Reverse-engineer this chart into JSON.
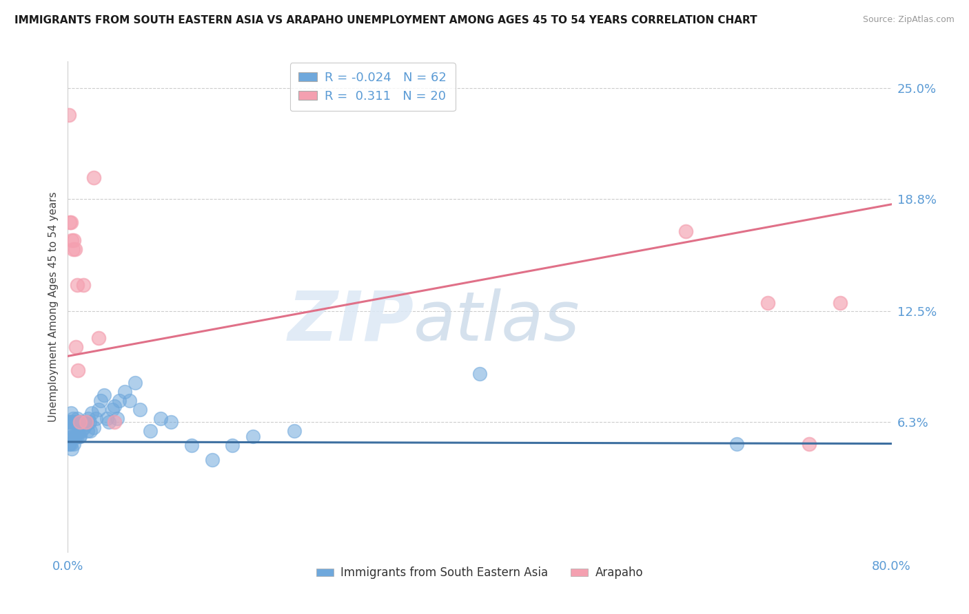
{
  "title": "IMMIGRANTS FROM SOUTH EASTERN ASIA VS ARAPAHO UNEMPLOYMENT AMONG AGES 45 TO 54 YEARS CORRELATION CHART",
  "source": "Source: ZipAtlas.com",
  "ylabel": "Unemployment Among Ages 45 to 54 years",
  "xlim": [
    0.0,
    0.8
  ],
  "ylim": [
    -0.01,
    0.265
  ],
  "ytick_positions": [
    0.063,
    0.125,
    0.188,
    0.25
  ],
  "ytick_labels": [
    "6.3%",
    "12.5%",
    "18.8%",
    "25.0%"
  ],
  "xtick_positions": [
    0.0,
    0.8
  ],
  "xtick_labels": [
    "0.0%",
    "80.0%"
  ],
  "blue_color": "#6fa8dc",
  "pink_color": "#f4a0b0",
  "blue_line_color": "#3d6fa0",
  "pink_line_color": "#e07088",
  "blue_R": -0.024,
  "blue_N": 62,
  "pink_R": 0.311,
  "pink_N": 20,
  "legend_label_blue": "Immigrants from South Eastern Asia",
  "legend_label_pink": "Arapaho",
  "watermark_zip": "ZIP",
  "watermark_atlas": "atlas",
  "blue_trend_x": [
    0.0,
    0.8
  ],
  "blue_trend_y": [
    0.052,
    0.051
  ],
  "pink_trend_x": [
    0.0,
    0.8
  ],
  "pink_trend_y": [
    0.1,
    0.185
  ],
  "blue_scatter_x": [
    0.001,
    0.001,
    0.002,
    0.002,
    0.003,
    0.003,
    0.003,
    0.004,
    0.004,
    0.004,
    0.005,
    0.005,
    0.006,
    0.006,
    0.006,
    0.007,
    0.007,
    0.008,
    0.008,
    0.009,
    0.009,
    0.01,
    0.011,
    0.011,
    0.012,
    0.012,
    0.013,
    0.014,
    0.015,
    0.016,
    0.017,
    0.018,
    0.019,
    0.02,
    0.021,
    0.022,
    0.023,
    0.025,
    0.027,
    0.03,
    0.032,
    0.035,
    0.038,
    0.04,
    0.043,
    0.045,
    0.048,
    0.05,
    0.055,
    0.06,
    0.065,
    0.07,
    0.08,
    0.09,
    0.1,
    0.12,
    0.14,
    0.16,
    0.18,
    0.22,
    0.4,
    0.65
  ],
  "blue_scatter_y": [
    0.063,
    0.051,
    0.063,
    0.051,
    0.068,
    0.058,
    0.051,
    0.063,
    0.055,
    0.048,
    0.065,
    0.055,
    0.063,
    0.058,
    0.051,
    0.063,
    0.055,
    0.063,
    0.055,
    0.065,
    0.055,
    0.063,
    0.063,
    0.055,
    0.063,
    0.055,
    0.058,
    0.063,
    0.063,
    0.06,
    0.063,
    0.062,
    0.058,
    0.065,
    0.063,
    0.058,
    0.068,
    0.06,
    0.065,
    0.07,
    0.075,
    0.078,
    0.065,
    0.063,
    0.07,
    0.072,
    0.065,
    0.075,
    0.08,
    0.075,
    0.085,
    0.07,
    0.058,
    0.065,
    0.063,
    0.05,
    0.042,
    0.05,
    0.055,
    0.058,
    0.09,
    0.051
  ],
  "pink_scatter_x": [
    0.001,
    0.002,
    0.003,
    0.004,
    0.005,
    0.006,
    0.007,
    0.008,
    0.009,
    0.01,
    0.012,
    0.015,
    0.018,
    0.025,
    0.03,
    0.045,
    0.6,
    0.68,
    0.72,
    0.75
  ],
  "pink_scatter_y": [
    0.235,
    0.175,
    0.175,
    0.165,
    0.16,
    0.165,
    0.16,
    0.105,
    0.14,
    0.092,
    0.063,
    0.14,
    0.063,
    0.2,
    0.11,
    0.063,
    0.17,
    0.13,
    0.051,
    0.13
  ]
}
